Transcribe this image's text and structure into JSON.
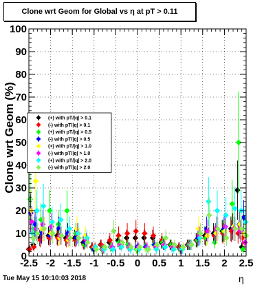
{
  "title": "Clone wrt Geom for Global vs   η at pT > 0.11",
  "footer_timestamp": "Tue May 15 10:10:03 2018",
  "chart_data": {
    "type": "scatter",
    "title": "Clone wrt Geom for Global vs   η at pT > 0.11",
    "xlabel": "η",
    "ylabel": "Clone wrt Geom (%)",
    "xlim": [
      -2.5,
      2.5
    ],
    "ylim": [
      0,
      100
    ],
    "x_ticks": [
      "-2.5",
      "-2",
      "-1.5",
      "-1",
      "-0.5",
      "0",
      "0.5",
      "1",
      "1.5",
      "2",
      "2.5"
    ],
    "y_ticks": [
      "0",
      "10",
      "20",
      "30",
      "40",
      "50",
      "60",
      "70",
      "80",
      "90",
      "100"
    ],
    "grid": true,
    "legend_position": "middle-left",
    "series": [
      {
        "name": "(+) with pT/|q| > 0.1",
        "color": "#000000",
        "x": [
          -2.45,
          -2.35,
          -2.2,
          -2.0,
          -1.8,
          -1.6,
          -1.4,
          -1.2,
          -1.0,
          -0.8,
          -0.6,
          -0.4,
          -0.2,
          0.0,
          0.2,
          0.4,
          0.6,
          0.8,
          1.0,
          1.2,
          1.4,
          1.6,
          1.8,
          2.0,
          2.2,
          2.35,
          2.45
        ],
        "y": [
          3,
          5,
          8,
          9,
          9,
          8,
          8,
          6,
          4,
          5,
          6,
          7,
          8,
          8,
          8,
          8,
          6,
          5,
          4,
          5,
          7,
          9,
          10,
          11,
          12,
          29,
          4
        ]
      },
      {
        "name": "(-) with pT/|q| > 0.1",
        "color": "#ff0000",
        "x": [
          -2.45,
          -2.35,
          -2.2,
          -2.0,
          -1.8,
          -1.6,
          -1.4,
          -1.2,
          -1.0,
          -0.8,
          -0.6,
          -0.4,
          -0.2,
          0.0,
          0.2,
          0.4,
          0.6,
          0.8,
          1.0,
          1.2,
          1.4,
          1.6,
          1.8,
          2.0,
          2.2,
          2.35,
          2.45
        ],
        "y": [
          3,
          4,
          7,
          8,
          8,
          7,
          7,
          5,
          4,
          5,
          7,
          9,
          10,
          11,
          10,
          9,
          7,
          5,
          4,
          5,
          7,
          8,
          9,
          10,
          11,
          10,
          8
        ]
      },
      {
        "name": "(+) with pT/|q| > 0.5",
        "color": "#00ff00",
        "x": [
          -2.45,
          -2.35,
          -2.2,
          -2.0,
          -1.8,
          -1.6,
          -1.4,
          -1.2,
          -1.0,
          -0.8,
          -0.6,
          -0.4,
          -0.2,
          0.0,
          0.2,
          0.4,
          0.6,
          0.8,
          1.0,
          1.2,
          1.4,
          1.6,
          1.8,
          2.0,
          2.2,
          2.35,
          2.45
        ],
        "y": [
          25,
          12,
          16,
          20,
          14,
          20,
          10,
          5,
          3,
          3,
          4,
          6,
          5,
          3,
          4,
          5,
          6,
          5,
          3,
          5,
          7,
          8,
          6,
          11,
          23,
          50,
          3
        ]
      },
      {
        "name": "(-) with pT/|q| > 0.5",
        "color": "#0000ff",
        "x": [
          -2.45,
          -2.35,
          -2.2,
          -2.0,
          -1.8,
          -1.6,
          -1.4,
          -1.2,
          -1.0,
          -0.8,
          -0.6,
          -0.4,
          -0.2,
          0.0,
          0.2,
          0.4,
          0.6,
          0.8,
          1.0,
          1.2,
          1.4,
          1.6,
          1.8,
          2.0,
          2.2,
          2.35,
          2.45
        ],
        "y": [
          19,
          14,
          10,
          9,
          12,
          10,
          8,
          6,
          3,
          3,
          4,
          5,
          4,
          4,
          4,
          5,
          5,
          4,
          3,
          5,
          8,
          12,
          10,
          12,
          13,
          14,
          17
        ]
      },
      {
        "name": "(+) with pT/|q| > 1.0",
        "color": "#ffff00",
        "x": [
          -2.45,
          -2.35,
          -2.2,
          -2.0,
          -1.8,
          -1.6,
          -1.4,
          -1.2,
          -1.0,
          -0.8,
          -0.6,
          -0.4,
          -0.2,
          0.0,
          0.2,
          0.4,
          0.6,
          0.8,
          1.0,
          1.2,
          1.4,
          1.6,
          1.8,
          2.0,
          2.2,
          2.35,
          2.45
        ],
        "y": [
          20,
          33,
          12,
          10,
          8,
          7,
          12,
          9,
          4,
          3,
          4,
          5,
          4,
          3,
          3,
          4,
          5,
          4,
          3,
          5,
          12,
          9,
          10,
          11,
          13,
          14,
          10
        ]
      },
      {
        "name": "(-) with pT/|q| > 1.0",
        "color": "#ff00ff",
        "x": [
          -2.45,
          -2.35,
          -2.2,
          -2.0,
          -1.8,
          -1.6,
          -1.4,
          -1.2,
          -1.0,
          -0.8,
          -0.6,
          -0.4,
          -0.2,
          0.0,
          0.2,
          0.4,
          0.6,
          0.8,
          1.0,
          1.2,
          1.4,
          1.6,
          1.8,
          2.0,
          2.2,
          2.35,
          2.45
        ],
        "y": [
          15,
          12,
          14,
          13,
          9,
          8,
          10,
          7,
          4,
          3,
          4,
          5,
          4,
          4,
          4,
          4,
          5,
          4,
          3,
          5,
          9,
          11,
          12,
          13,
          12,
          11,
          6
        ]
      },
      {
        "name": "(+) with pT/|q| > 2.0",
        "color": "#00ffff",
        "x": [
          -2.45,
          -2.35,
          -2.2,
          -2.0,
          -1.8,
          -1.6,
          -1.4,
          -1.2,
          -1.0,
          -0.8,
          -0.6,
          -0.4,
          -0.2,
          0.0,
          0.2,
          0.4,
          0.6,
          0.8,
          1.0,
          1.2,
          1.4,
          1.6,
          1.8,
          2.0,
          2.2,
          2.35,
          2.45
        ],
        "y": [
          10,
          20,
          22,
          15,
          16,
          12,
          10,
          8,
          4,
          3,
          3,
          4,
          3,
          3,
          3,
          3,
          4,
          3,
          3,
          5,
          8,
          24,
          20,
          18,
          21,
          20,
          15
        ]
      },
      {
        "name": "(-) with pT/|q| > 2.0",
        "color": "#88ee55",
        "x": [
          -2.45,
          -2.35,
          -2.2,
          -2.0,
          -1.8,
          -1.6,
          -1.4,
          -1.2,
          -1.0,
          -0.8,
          -0.6,
          -0.4,
          -0.2,
          0.0,
          0.2,
          0.4,
          0.6,
          0.8,
          1.0,
          1.2,
          1.4,
          1.6,
          1.8,
          2.0,
          2.2,
          2.35,
          2.45
        ],
        "y": [
          8,
          10,
          12,
          10,
          9,
          8,
          8,
          6,
          3,
          4,
          11,
          6,
          4,
          4,
          3,
          5,
          8,
          5,
          4,
          5,
          10,
          18,
          12,
          8,
          12,
          12,
          9
        ]
      }
    ]
  }
}
